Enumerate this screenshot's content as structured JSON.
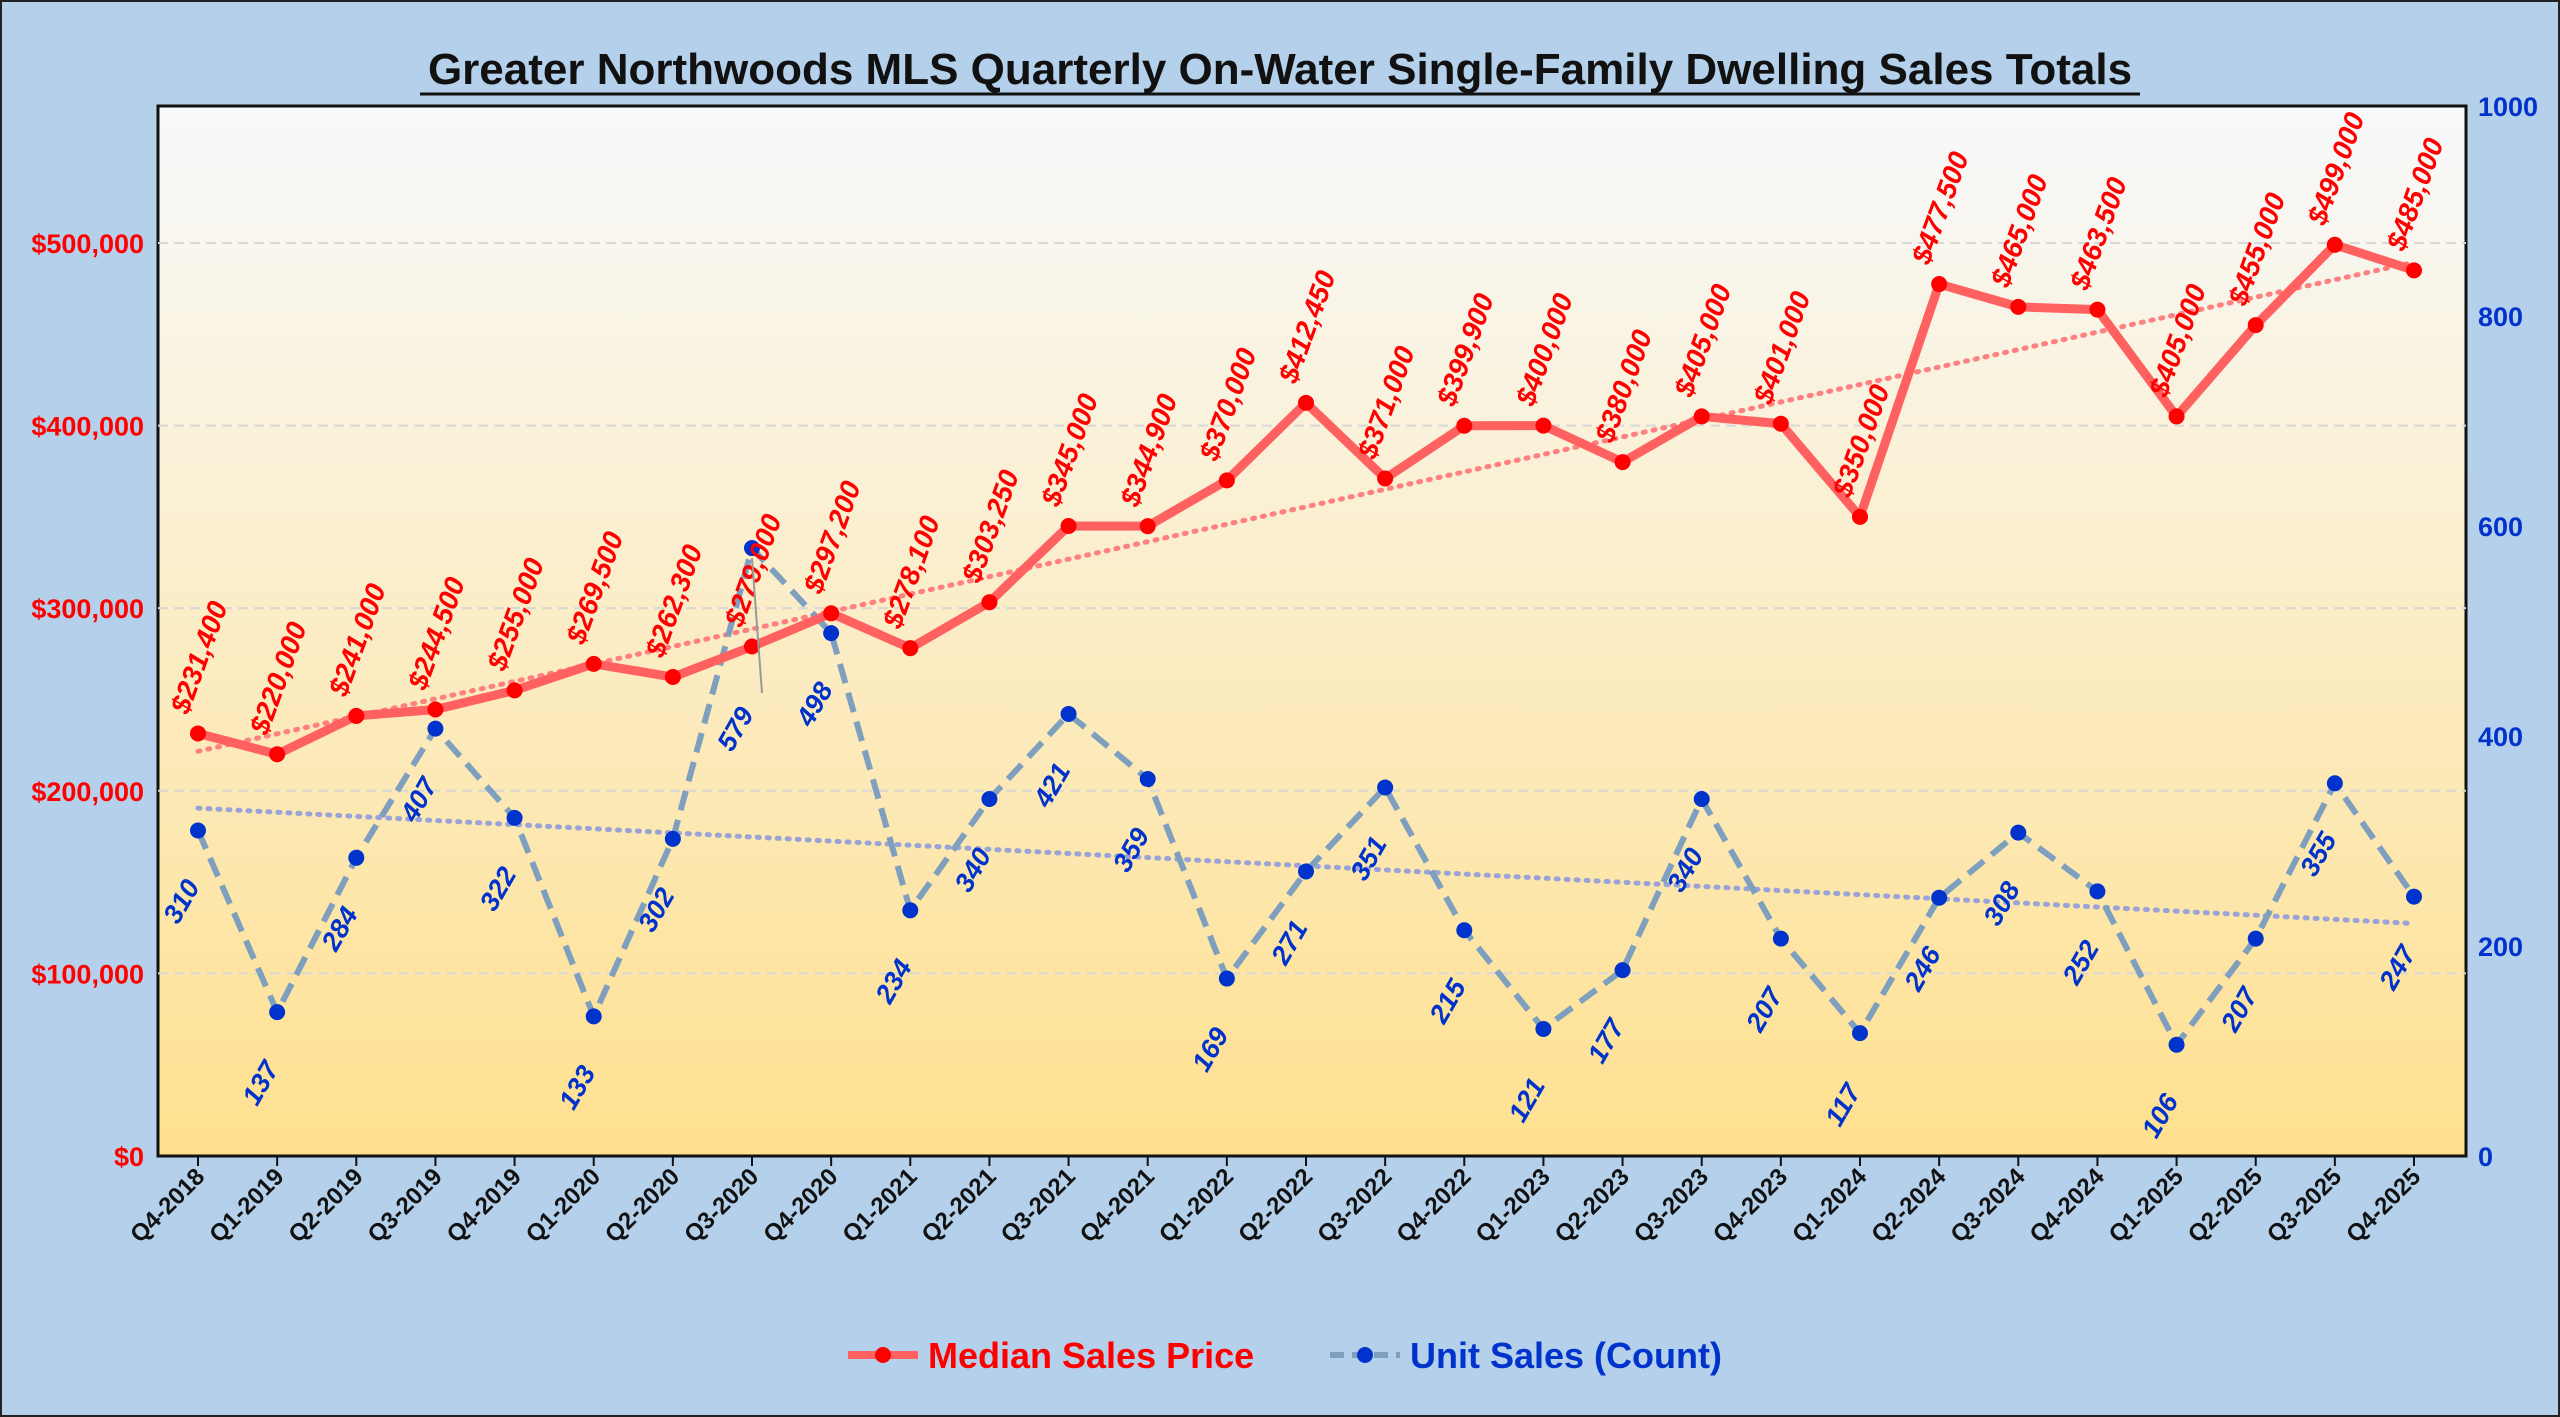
{
  "chart_data": {
    "type": "line",
    "title": "Greater Northwoods MLS Quarterly On-Water Single-Family Dwelling Sales Totals",
    "categories": [
      "Q4-2018",
      "Q1-2019",
      "Q2-2019",
      "Q3-2019",
      "Q4-2019",
      "Q1-2020",
      "Q2-2020",
      "Q3-2020",
      "Q4-2020",
      "Q1-2021",
      "Q2-2021",
      "Q3-2021",
      "Q4-2021",
      "Q1-2022",
      "Q2-2022",
      "Q3-2022",
      "Q4-2022",
      "Q1-2023",
      "Q2-2023",
      "Q3-2023",
      "Q4-2023",
      "Q1-2024",
      "Q2-2024",
      "Q3-2024",
      "Q4-2024",
      "Q1-2025",
      "Q2-2025",
      "Q3-2025",
      "Q4-2025"
    ],
    "series": [
      {
        "name": "Median Sales Price",
        "axis": "left",
        "color": "#ff6060",
        "marker_color": "#ff0000",
        "style": "solid",
        "trendline": "linear",
        "values": [
          231400,
          220000,
          241000,
          244500,
          255000,
          269500,
          262300,
          279000,
          297200,
          278100,
          303250,
          345000,
          344900,
          370000,
          412450,
          371000,
          399900,
          400000,
          380000,
          405000,
          401000,
          350000,
          477500,
          465000,
          463500,
          405000,
          455000,
          499000,
          485000
        ],
        "labels": [
          "$231,400",
          "$220,000",
          "$241,000",
          "$244,500",
          "$255,000",
          "$269,500",
          "$262,300",
          "$279,000",
          "$297,200",
          "$278,100",
          "$303,250",
          "$345,000",
          "$344,900",
          "$370,000",
          "$412,450",
          "$371,000",
          "$399,900",
          "$400,000",
          "$380,000",
          "$405,000",
          "$401,000",
          "$350,000",
          "$477,500",
          "$465,000",
          "$463,500",
          "$405,000",
          "$455,000",
          "$499,000",
          "$485,000"
        ]
      },
      {
        "name": "Unit Sales (Count)",
        "axis": "right",
        "color": "#7f9fbf",
        "marker_color": "#0033cc",
        "style": "dashed",
        "trendline": "linear",
        "values": [
          310,
          137,
          284,
          407,
          322,
          133,
          302,
          579,
          498,
          234,
          340,
          421,
          359,
          169,
          271,
          351,
          215,
          121,
          177,
          340,
          207,
          117,
          246,
          308,
          252,
          106,
          207,
          355,
          247
        ],
        "labels": [
          "310",
          "137",
          "284",
          "407",
          "322",
          "133",
          "302",
          "579",
          "498",
          "234",
          "340",
          "421",
          "359",
          "169",
          "271",
          "351",
          "215",
          "121",
          "177",
          "340",
          "207",
          "117",
          "246",
          "308",
          "252",
          "106",
          "207",
          "355",
          "247"
        ]
      }
    ],
    "left_axis": {
      "ylim": [
        0,
        575000
      ],
      "ticks": [
        "$0",
        "$100,000",
        "$200,000",
        "$300,000",
        "$400,000",
        "$500,000"
      ],
      "tick_values": [
        0,
        100000,
        200000,
        300000,
        400000,
        500000
      ],
      "color": "#ff0000"
    },
    "right_axis": {
      "ylim": [
        0,
        1000
      ],
      "ticks": [
        "0",
        "200",
        "400",
        "600",
        "800",
        "1000"
      ],
      "tick_values": [
        0,
        200,
        400,
        600,
        800,
        1000
      ],
      "color": "#0033cc"
    },
    "grid": true,
    "legend": "bottom",
    "background": {
      "top": "#f7f9fc",
      "bottom": "#ffe08f"
    }
  }
}
